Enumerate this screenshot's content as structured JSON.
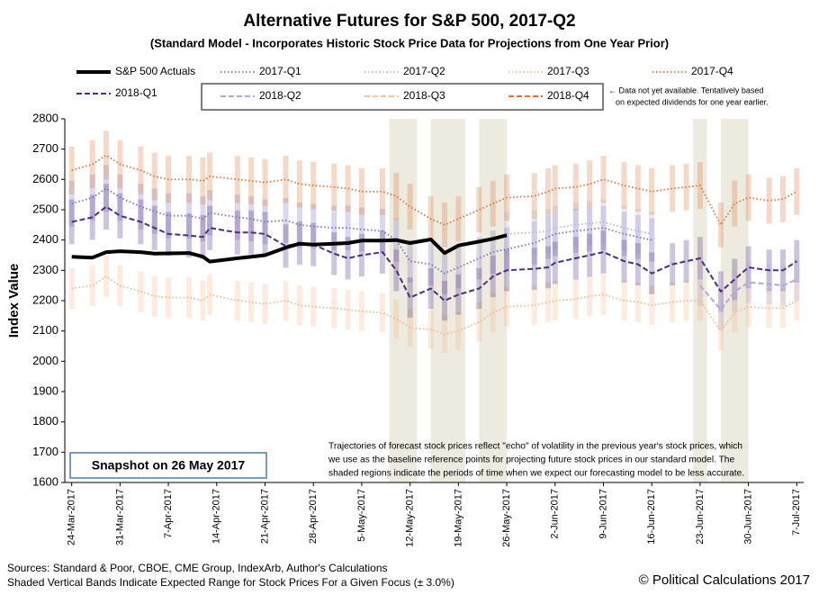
{
  "chart_data": {
    "type": "line",
    "title": "Alternative Futures for S&P 500, 2017-Q2",
    "subtitle": "(Standard Model - Incorporates Historic Stock Price Data for Projections from One Year Prior)",
    "y_label": "Index Value",
    "legend_note": [
      "← Data not yet available. Tentatively based",
      "on expected dividends for one year earlier."
    ],
    "annotation": [
      "Trajectories of forecast stock prices reflect \"echo\" of volatility in  the previous year's stock prices, which",
      "we use as the baseline reference points for projecting future stock prices in our standard model.  The",
      "shaded regions indicate the periods of time when we expect our forecasting model to be less accurate."
    ],
    "snapshot": "Snapshot on 26 May 2017",
    "sources": [
      "Sources: Standard & Poor, CBOE, CME Group, IndexArb, Author's Calculations",
      "Shaded Vertical Bands Indicate Expected Range for Stock Prices For a Given Focus (± 3.0%)"
    ],
    "copyright": "© Political Calculations 2017",
    "range_pct": 3,
    "shaded_regions": [
      [
        "2017-05-09",
        "2017-05-13"
      ],
      [
        "2017-05-15",
        "2017-05-20"
      ],
      [
        "2017-05-22",
        "2017-05-26"
      ],
      [
        "2017-06-22",
        "2017-06-24"
      ],
      [
        "2017-06-26",
        "2017-06-30"
      ]
    ],
    "xlim": [
      "2017-03-23",
      "2017-07-08"
    ],
    "xticks": [
      {
        "value": "2017-03-24",
        "label": "24-Mar-2017"
      },
      {
        "value": "2017-03-31",
        "label": "31-Mar-2017"
      },
      {
        "value": "2017-04-07",
        "label": "7-Apr-2017"
      },
      {
        "value": "2017-04-14",
        "label": "14-Apr-2017"
      },
      {
        "value": "2017-04-21",
        "label": "21-Apr-2017"
      },
      {
        "value": "2017-04-28",
        "label": "28-Apr-2017"
      },
      {
        "value": "2017-05-05",
        "label": "5-May-2017"
      },
      {
        "value": "2017-05-12",
        "label": "12-May-2017"
      },
      {
        "value": "2017-05-19",
        "label": "19-May-2017"
      },
      {
        "value": "2017-05-26",
        "label": "26-May-2017"
      },
      {
        "value": "2017-06-02",
        "label": "2-Jun-2017"
      },
      {
        "value": "2017-06-09",
        "label": "9-Jun-2017"
      },
      {
        "value": "2017-06-16",
        "label": "16-Jun-2017"
      },
      {
        "value": "2017-06-23",
        "label": "23-Jun-2017"
      },
      {
        "value": "2017-06-30",
        "label": "30-Jun-2017"
      },
      {
        "value": "2017-07-07",
        "label": "7-Jul-2017"
      }
    ],
    "ylim": [
      1600,
      2800
    ],
    "yticks": [
      1600,
      1700,
      1800,
      1900,
      2000,
      2100,
      2200,
      2300,
      2400,
      2500,
      2600,
      2700,
      2800
    ],
    "grid": false,
    "x": [
      "2017-03-24",
      "2017-03-27",
      "2017-03-29",
      "2017-03-31",
      "2017-04-03",
      "2017-04-05",
      "2017-04-07",
      "2017-04-10",
      "2017-04-12",
      "2017-04-13",
      "2017-04-17",
      "2017-04-19",
      "2017-04-21",
      "2017-04-24",
      "2017-04-26",
      "2017-04-28",
      "2017-05-01",
      "2017-05-03",
      "2017-05-05",
      "2017-05-08",
      "2017-05-10",
      "2017-05-12",
      "2017-05-15",
      "2017-05-17",
      "2017-05-19",
      "2017-05-22",
      "2017-05-24",
      "2017-05-26",
      "2017-05-30",
      "2017-06-01",
      "2017-06-02",
      "2017-06-05",
      "2017-06-07",
      "2017-06-09",
      "2017-06-12",
      "2017-06-14",
      "2017-06-16",
      "2017-06-19",
      "2017-06-21",
      "2017-06-23",
      "2017-06-26",
      "2017-06-28",
      "2017-06-30",
      "2017-07-03",
      "2017-07-05",
      "2017-07-07"
    ],
    "series": [
      {
        "name": "S&P 500 Actuals",
        "color": "#000000",
        "dash": "solid",
        "values": [
          2345,
          2342,
          2360,
          2363,
          2360,
          2355,
          2356,
          2357,
          2345,
          2329,
          2340,
          2345,
          2350,
          2375,
          2388,
          2385,
          2388,
          2390,
          2398,
          2398,
          2400,
          2390,
          2402,
          2357,
          2382,
          2395,
          2404,
          2416,
          null,
          null,
          null,
          null,
          null,
          null,
          null,
          null,
          null,
          null,
          null,
          null,
          null,
          null,
          null,
          null,
          null,
          null
        ]
      },
      {
        "name": "2017-Q1",
        "color": "#8070c0",
        "dash": "dotted",
        "values": [
          2520,
          2540,
          2570,
          2540,
          2510,
          2495,
          2480,
          2480,
          2470,
          2490,
          2475,
          2470,
          2460,
          2465,
          2450,
          2445,
          2440,
          2440,
          2435,
          2430,
          2400,
          2330,
          2320,
          2290,
          2310,
          2340,
          2360,
          2370,
          2390,
          2410,
          2420,
          2430,
          2435,
          2440,
          2420,
          2410,
          2400,
          null,
          null,
          null,
          null,
          null,
          null,
          null,
          null,
          null
        ]
      },
      {
        "name": "2017-Q2",
        "color": "#b8b4dc",
        "dash": "dotted",
        "values": [
          null,
          null,
          null,
          null,
          null,
          null,
          null,
          null,
          null,
          null,
          null,
          null,
          null,
          null,
          null,
          null,
          null,
          null,
          null,
          null,
          null,
          null,
          null,
          null,
          null,
          null,
          null,
          2420,
          2425,
          2430,
          2440,
          2450,
          2455,
          2460,
          2440,
          2430,
          2420,
          null,
          null,
          null,
          null,
          null,
          null,
          null,
          null,
          null
        ]
      },
      {
        "name": "2017-Q3",
        "color": "#f5b888",
        "dash": "dotted",
        "values": [
          2240,
          2250,
          2280,
          2250,
          2230,
          2215,
          2210,
          2210,
          2200,
          2220,
          2200,
          2195,
          2190,
          2200,
          2185,
          2180,
          2175,
          2170,
          2165,
          2160,
          2140,
          2110,
          2105,
          2090,
          2100,
          2130,
          2160,
          2180,
          2185,
          2195,
          2200,
          2205,
          2215,
          2220,
          2200,
          2195,
          2185,
          2195,
          2200,
          2200,
          2100,
          2160,
          2180,
          2175,
          2175,
          2200
        ]
      },
      {
        "name": "2017-Q4",
        "color": "#d9753b",
        "dash": "dotted",
        "values": [
          2630,
          2650,
          2680,
          2650,
          2630,
          2610,
          2600,
          2600,
          2595,
          2610,
          2600,
          2595,
          2590,
          2600,
          2585,
          2580,
          2575,
          2570,
          2560,
          2560,
          2545,
          2510,
          2470,
          2450,
          2470,
          2500,
          2520,
          2540,
          2545,
          2560,
          2570,
          2575,
          2585,
          2600,
          2580,
          2570,
          2560,
          2570,
          2575,
          2580,
          2450,
          2520,
          2540,
          2530,
          2535,
          2560
        ]
      },
      {
        "name": "2018-Q1",
        "color": "#4b2e83",
        "dash": "dashed",
        "values": [
          2460,
          2475,
          2510,
          2480,
          2460,
          2440,
          2420,
          2415,
          2410,
          2440,
          2425,
          2425,
          2420,
          2380,
          2390,
          2385,
          2355,
          2340,
          2350,
          2360,
          2300,
          2210,
          2240,
          2200,
          2220,
          2240,
          2280,
          2300,
          2305,
          2310,
          2325,
          2340,
          2350,
          2360,
          2330,
          2320,
          2290,
          2320,
          2330,
          2340,
          2230,
          2270,
          2310,
          2300,
          2300,
          2330
        ]
      },
      {
        "name": "2018-Q2",
        "color": "#b0a8d8",
        "dash": "dashed",
        "values": [
          null,
          null,
          null,
          null,
          null,
          null,
          null,
          null,
          null,
          null,
          null,
          null,
          null,
          null,
          null,
          null,
          null,
          null,
          null,
          null,
          null,
          null,
          null,
          null,
          null,
          null,
          null,
          null,
          null,
          null,
          null,
          null,
          null,
          null,
          null,
          null,
          null,
          null,
          null,
          2250,
          2170,
          2230,
          2260,
          2255,
          2250,
          2270
        ]
      },
      {
        "name": "2018-Q3",
        "color": "#f5c49a",
        "dash": "dashed",
        "values": [
          null,
          null,
          null,
          null,
          null,
          null,
          null,
          null,
          null,
          null,
          null,
          null,
          null,
          null,
          null,
          null,
          null,
          null,
          null,
          null,
          null,
          null,
          null,
          null,
          null,
          null,
          null,
          null,
          null,
          null,
          null,
          null,
          null,
          null,
          null,
          null,
          null,
          null,
          null,
          null,
          null,
          null,
          null,
          null,
          null,
          null
        ]
      },
      {
        "name": "2018-Q4",
        "color": "#e0703a",
        "dash": "dashed",
        "values": [
          null,
          null,
          null,
          null,
          null,
          null,
          null,
          null,
          null,
          null,
          null,
          null,
          null,
          null,
          null,
          null,
          null,
          null,
          null,
          null,
          null,
          null,
          null,
          null,
          null,
          null,
          null,
          null,
          null,
          null,
          null,
          null,
          null,
          null,
          null,
          null,
          null,
          null,
          null,
          null,
          null,
          null,
          null,
          null,
          null,
          null
        ]
      }
    ]
  }
}
